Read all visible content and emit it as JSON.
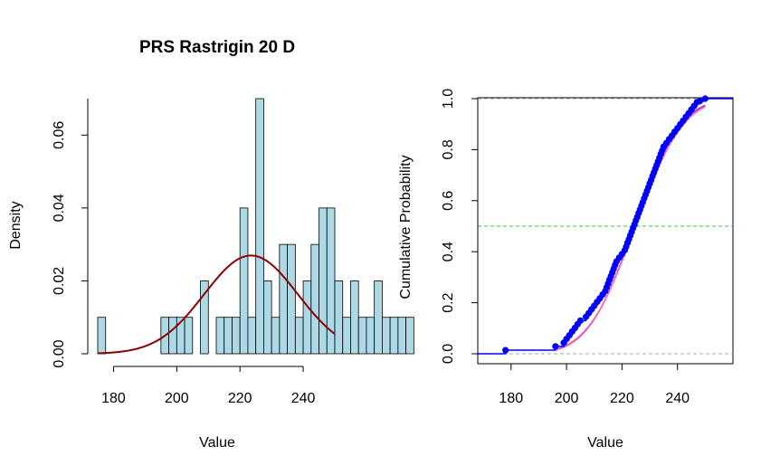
{
  "chart_data": [
    {
      "type": "bar",
      "title": "PRS Rastrigin 20 D",
      "xlabel": "Value",
      "ylabel": "Density",
      "xlim": [
        175,
        250
      ],
      "ylim": [
        0,
        0.07
      ],
      "x_ticks": [
        "180",
        "200",
        "220",
        "240"
      ],
      "y_ticks": [
        "0.00",
        "0.02",
        "0.04",
        "0.06"
      ],
      "bar_color": "#add8e6",
      "curve_color": "#8b0000",
      "bin_width": 2.5,
      "bins_start": 175,
      "values": [
        0.01,
        0,
        0,
        0,
        0,
        0,
        0,
        0,
        0.01,
        0.01,
        0.01,
        0.01,
        0,
        0.02,
        0,
        0.01,
        0.01,
        0.01,
        0.04,
        0.01,
        0.07,
        0.02,
        0.01,
        0.03,
        0.03,
        0.01,
        0.02,
        0.03,
        0.04,
        0.04,
        0.02,
        0.01,
        0.02,
        0.01,
        0.01,
        0.02,
        0.01,
        0.01,
        0.01,
        0.01
      ],
      "normal_curve": {
        "mean": 223.5,
        "sd": 14.8
      }
    },
    {
      "type": "line",
      "xlabel": "Value",
      "ylabel": "Cumulative Probability",
      "xlim": [
        168,
        260
      ],
      "ylim": [
        0,
        1
      ],
      "x_ticks": [
        "180",
        "200",
        "220",
        "240"
      ],
      "y_ticks": [
        "0.0",
        "0.2",
        "0.4",
        "0.6",
        "0.8",
        "1.0"
      ],
      "reference_lines": [
        {
          "y": 0,
          "color": "#aaaaaa"
        },
        {
          "y": 0.5,
          "color": "#33cc33"
        },
        {
          "y": 1,
          "color": "#aaaaaa"
        }
      ],
      "series": [
        {
          "style": "ecdf",
          "color": "#0000ff",
          "x": [
            178,
            196,
            199,
            200,
            201,
            202,
            203,
            204,
            205,
            207,
            208,
            209,
            210,
            211,
            212,
            213,
            214,
            214.5,
            215,
            215.5,
            216,
            216.5,
            217,
            217.5,
            218,
            219,
            220,
            221,
            221.5,
            222,
            222.5,
            223,
            223.5,
            224,
            224.5,
            225,
            225.5,
            226,
            226.5,
            227,
            227.5,
            228,
            228.5,
            229,
            229.5,
            230,
            230.5,
            231,
            231.5,
            232,
            232.5,
            233,
            233.5,
            234,
            234.5,
            235,
            236,
            237,
            238,
            239,
            240,
            241,
            242,
            243,
            244,
            245,
            246,
            247,
            248,
            250
          ],
          "y": [
            0.014,
            0.029,
            0.043,
            0.058,
            0.072,
            0.087,
            0.101,
            0.116,
            0.13,
            0.145,
            0.159,
            0.174,
            0.188,
            0.203,
            0.217,
            0.232,
            0.246,
            0.261,
            0.275,
            0.29,
            0.304,
            0.319,
            0.333,
            0.348,
            0.362,
            0.377,
            0.391,
            0.406,
            0.42,
            0.435,
            0.449,
            0.464,
            0.478,
            0.493,
            0.507,
            0.522,
            0.536,
            0.551,
            0.565,
            0.58,
            0.594,
            0.609,
            0.623,
            0.638,
            0.652,
            0.667,
            0.681,
            0.696,
            0.71,
            0.725,
            0.739,
            0.754,
            0.768,
            0.783,
            0.797,
            0.812,
            0.826,
            0.841,
            0.855,
            0.87,
            0.884,
            0.899,
            0.913,
            0.928,
            0.942,
            0.957,
            0.971,
            0.986,
            0.99,
            1.0
          ]
        },
        {
          "style": "normal_cdf",
          "color": "#a020f0",
          "mean": 224.5,
          "sd": 13.2,
          "x_range": [
            196,
            250
          ]
        },
        {
          "style": "normal_cdf",
          "color": "#ff69b4",
          "mean": 224.8,
          "sd": 13.6,
          "x_range": [
            196,
            250
          ]
        }
      ]
    }
  ]
}
